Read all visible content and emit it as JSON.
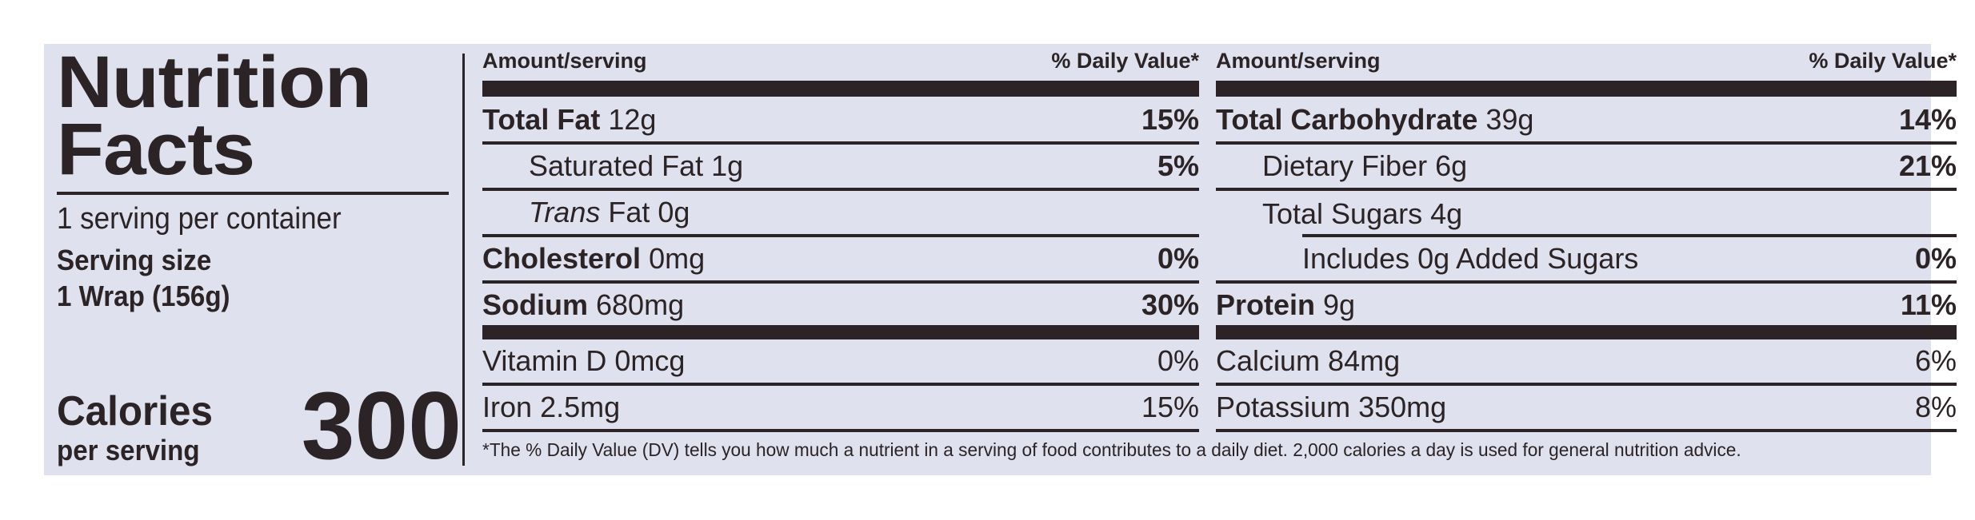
{
  "title_line1": "Nutrition",
  "title_line2": "Facts",
  "servings_per_container": "1 serving per container",
  "serving_size_label": "Serving size",
  "serving_size_value": "1 Wrap (156g)",
  "calories_label": "Calories",
  "calories_sub": "per serving",
  "calories_value": "300",
  "col_header_amount": "Amount/serving",
  "col_header_dv": "% Daily Value*",
  "left_rows": [
    {
      "name": "Total Fat",
      "amount": "12g",
      "dv": "15%"
    },
    {
      "name": "Saturated Fat",
      "amount": "1g",
      "dv": "5%"
    },
    {
      "name": "Trans",
      "name2": "Fat",
      "amount": "0g",
      "dv": ""
    },
    {
      "name": "Cholesterol",
      "amount": "0mg",
      "dv": "0%"
    },
    {
      "name": "Sodium",
      "amount": "680mg",
      "dv": "30%"
    },
    {
      "name": "Vitamin D",
      "amount": "0mcg",
      "dv": "0%"
    },
    {
      "name": "Iron",
      "amount": "2.5mg",
      "dv": "15%"
    }
  ],
  "right_rows": [
    {
      "name": "Total Carbohydrate",
      "amount": "39g",
      "dv": "14%"
    },
    {
      "name": "Dietary Fiber",
      "amount": "6g",
      "dv": "21%"
    },
    {
      "name": "Total Sugars",
      "amount": "4g",
      "dv": ""
    },
    {
      "name": "Includes 0g Added Sugars",
      "amount": "",
      "dv": "0%"
    },
    {
      "name": "Protein",
      "amount": "9g",
      "dv": "11%"
    },
    {
      "name": "Calcium",
      "amount": "84mg",
      "dv": "6%"
    },
    {
      "name": "Potassium",
      "amount": "350mg",
      "dv": "8%"
    }
  ],
  "footnote": "*The % Daily Value (DV) tells you how much a nutrient in a serving of food contributes to a daily diet. 2,000 calories a day is used for general nutrition advice."
}
